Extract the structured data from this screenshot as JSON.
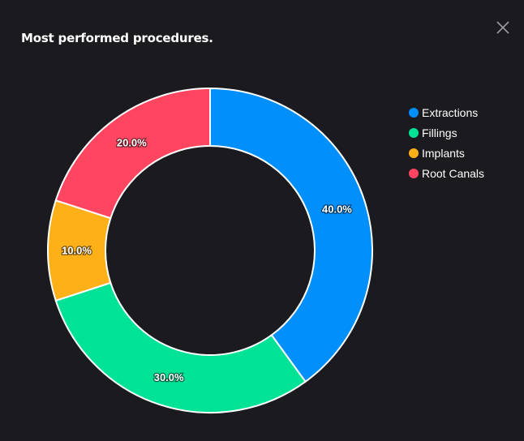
{
  "panel": {
    "title": "Most performed procedures.",
    "close_icon": "close-icon"
  },
  "chart_data": {
    "type": "donut",
    "title": "Most performed procedures.",
    "categories": [
      "Extractions",
      "Fillings",
      "Implants",
      "Root Canals"
    ],
    "values": [
      40.0,
      30.0,
      10.0,
      20.0
    ],
    "labels": [
      "40.0%",
      "30.0%",
      "10.0%",
      "20.0%"
    ],
    "colors": [
      "#008ffb",
      "#00e396",
      "#feb019",
      "#ff4560"
    ],
    "legend_position": "right",
    "start_angle_deg": 0,
    "direction": "clockwise"
  }
}
